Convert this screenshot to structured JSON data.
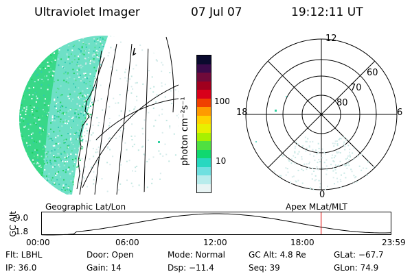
{
  "header": {
    "title": "Ultraviolet Imager",
    "date": "07 Jul 07",
    "time": "19:12:11 UT"
  },
  "colorbar": {
    "unit_label": "photon cm⁻²s⁻¹",
    "ticks": [
      "100",
      "10"
    ],
    "colors": [
      "#0a0a2e",
      "#3a0a4a",
      "#700a3a",
      "#a0001e",
      "#d8001a",
      "#f04000",
      "#ff9a00",
      "#ffd200",
      "#e8f000",
      "#a8f000",
      "#50e040",
      "#10d870",
      "#28d8c0",
      "#70e0e0",
      "#b8ecec",
      "#e8f4f4"
    ]
  },
  "polar_plot": {
    "lat_labels": [
      "60",
      "70",
      "80"
    ],
    "mlt_labels": {
      "top": "12",
      "left": "18",
      "right": "6",
      "bottom": "0"
    }
  },
  "timeline": {
    "left_label": "Geographic Lat/Lon",
    "right_label": "Apex MLat/MLT",
    "y_axis_label": "GC Alt",
    "y_ticks": [
      "9.0",
      "1.8"
    ],
    "x_ticks": [
      "00:00",
      "06:00",
      "12:00",
      "18:00",
      "23:59"
    ],
    "current_hour": 19.2
  },
  "info": {
    "col1": [
      "Flt: LBHL",
      "IP: 36.0"
    ],
    "col2": [
      "Door: Open",
      "Gain: 14"
    ],
    "col3": [
      "Mode: Normal",
      "Dsp: −11.4"
    ],
    "col4": [
      "GC Alt: 4.8 Re",
      "Seq: 39"
    ],
    "col5": [
      "GLat: −67.7",
      "GLon:  74.9"
    ]
  }
}
